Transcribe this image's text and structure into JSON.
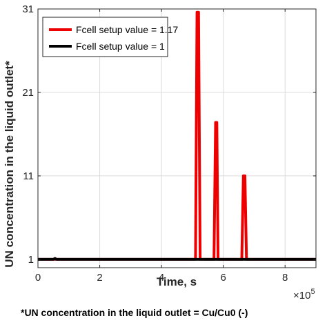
{
  "chart_data": {
    "type": "line",
    "xlabel": "Time, s",
    "ylabel": "UN concentration in the liquid outlet*",
    "x_exponent_label": "×10",
    "x_exponent_power": "5",
    "x_scale": 100000,
    "xlim": [
      0,
      900000
    ],
    "ylim": [
      0,
      31
    ],
    "x_ticks": [
      0,
      200000,
      400000,
      600000,
      800000
    ],
    "x_tick_labels": [
      "0",
      "2",
      "4",
      "6",
      "8"
    ],
    "y_ticks": [
      1,
      11,
      21,
      31
    ],
    "y_tick_labels": [
      "1",
      "11",
      "21",
      "31"
    ],
    "grid": true,
    "legend_position": "top-left",
    "series": [
      {
        "name": "Fcell setup value = 1.17",
        "color": "#ee0000",
        "x": [
          0,
          510000,
          515000,
          520000,
          525000,
          530000,
          570000,
          575000,
          579000,
          583000,
          660000,
          665000,
          670000,
          675000,
          900000
        ],
        "values": [
          1,
          1,
          30.6,
          30.6,
          1,
          1,
          1,
          17.4,
          17.4,
          1,
          1,
          11,
          11,
          1,
          1
        ]
      },
      {
        "name": "Fcell setup value = 1",
        "color": "#000000",
        "x": [
          0,
          50000,
          55000,
          60000,
          900000
        ],
        "values": [
          1,
          1,
          1.1,
          1,
          1
        ]
      }
    ]
  },
  "caption": "*UN concentration in the liquid outlet = Cu/Cu0 (-)"
}
